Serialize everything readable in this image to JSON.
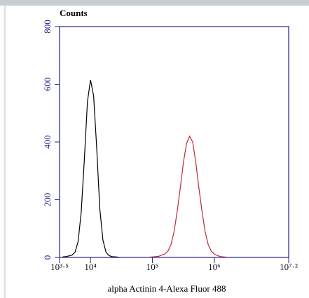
{
  "chart_data": {
    "type": "line",
    "title": "Counts",
    "x_label": "alpha Actinin 4-Alexa Fluor 488",
    "x": [
      3.55,
      3.6,
      3.65,
      3.7,
      3.75,
      3.8,
      3.85,
      3.9,
      3.95,
      4.0,
      4.05,
      4.1,
      4.15,
      4.2,
      4.25,
      4.3,
      4.35,
      4.4,
      4.45,
      4.5,
      4.55,
      4.6,
      4.65,
      4.7,
      4.75,
      4.8,
      4.85,
      4.9,
      4.95,
      5.0,
      5.05,
      5.1,
      5.15,
      5.2,
      5.25,
      5.3,
      5.35,
      5.4,
      5.45,
      5.5,
      5.55,
      5.6,
      5.65,
      5.7,
      5.75,
      5.8,
      5.85,
      5.9,
      5.95,
      6.0,
      6.05,
      6.1,
      6.15,
      6.2,
      6.25,
      6.3,
      6.35,
      6.4,
      6.45,
      6.5
    ],
    "series": [
      {
        "color": "#000000",
        "values": [
          2,
          3,
          5,
          8,
          18,
          55,
          157,
          340,
          540,
          615,
          560,
          380,
          170,
          60,
          18,
          6,
          3,
          2,
          1,
          null,
          null,
          null,
          null,
          null,
          null,
          null,
          null,
          null,
          null,
          null,
          null,
          null,
          null,
          null,
          null,
          null,
          null,
          null,
          null,
          null,
          null,
          null,
          null,
          null,
          null,
          null,
          null,
          null,
          null,
          null,
          null,
          null,
          null,
          null,
          null,
          null,
          null,
          null,
          null,
          null
        ]
      },
      {
        "color": "#c0283c",
        "values": [
          null,
          null,
          null,
          null,
          null,
          null,
          null,
          null,
          null,
          null,
          null,
          null,
          null,
          null,
          null,
          null,
          null,
          null,
          null,
          null,
          null,
          null,
          null,
          null,
          null,
          null,
          null,
          null,
          1,
          2,
          3,
          4,
          8,
          12,
          22,
          45,
          90,
          160,
          240,
          330,
          395,
          420,
          400,
          330,
          240,
          160,
          90,
          45,
          22,
          12,
          6,
          3,
          2,
          1,
          null,
          null,
          null,
          null,
          null,
          null
        ]
      }
    ],
    "xlim": [
      3.5,
      7.2
    ],
    "xticks": [
      {
        "value": 3.5,
        "label": "10³·⁵"
      },
      {
        "value": 4,
        "label": "10⁴"
      },
      {
        "value": 5,
        "label": "10⁵"
      },
      {
        "value": 6,
        "label": "10⁶"
      },
      {
        "value": 7.2,
        "label": "10⁷·²"
      }
    ],
    "ylim": [
      0,
      800
    ],
    "yticks": [
      0,
      200,
      400,
      600,
      800
    ],
    "axis_color": "#22228a"
  }
}
